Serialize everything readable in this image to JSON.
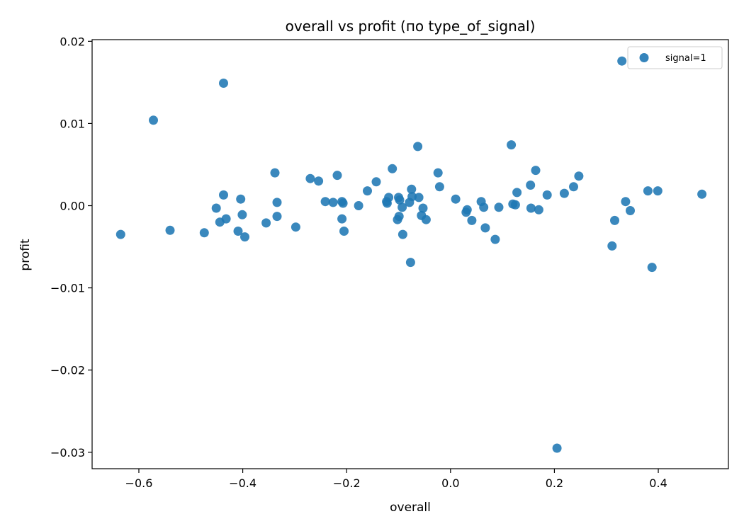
{
  "chart_data": {
    "type": "scatter",
    "title": "overall vs profit (по type_of_signal)",
    "xlabel": "overall",
    "ylabel": "profit",
    "xlim": [
      -0.69,
      0.535
    ],
    "ylim": [
      -0.032,
      0.0202
    ],
    "xticks": [
      -0.6,
      -0.4,
      -0.2,
      0.0,
      0.2,
      0.4
    ],
    "xtick_labels": [
      "−0.6",
      "−0.4",
      "−0.2",
      "0.0",
      "0.2",
      "0.4"
    ],
    "yticks": [
      -0.03,
      -0.02,
      -0.01,
      0.0,
      0.01,
      0.02
    ],
    "ytick_labels": [
      "−0.03",
      "−0.02",
      "−0.01",
      "0.00",
      "0.01",
      "0.02"
    ],
    "grid": false,
    "legend_position": "top-right",
    "series": [
      {
        "name": "signal=1",
        "color": "#1f77b4",
        "points": [
          [
            -0.635,
            -0.0035
          ],
          [
            -0.572,
            0.0104
          ],
          [
            -0.54,
            -0.003
          ],
          [
            -0.474,
            -0.0033
          ],
          [
            -0.451,
            -0.0003
          ],
          [
            -0.444,
            -0.002
          ],
          [
            -0.437,
            0.0149
          ],
          [
            -0.437,
            0.0013
          ],
          [
            -0.432,
            -0.0016
          ],
          [
            -0.409,
            -0.0031
          ],
          [
            -0.404,
            0.0008
          ],
          [
            -0.401,
            -0.0011
          ],
          [
            -0.396,
            -0.0038
          ],
          [
            -0.355,
            -0.0021
          ],
          [
            -0.338,
            0.004
          ],
          [
            -0.334,
            0.0004
          ],
          [
            -0.334,
            -0.0013
          ],
          [
            -0.298,
            -0.0026
          ],
          [
            -0.27,
            0.0033
          ],
          [
            -0.254,
            0.003
          ],
          [
            -0.241,
            0.0005
          ],
          [
            -0.226,
            0.0004
          ],
          [
            -0.218,
            0.0037
          ],
          [
            -0.209,
            0.0005
          ],
          [
            -0.209,
            -0.0016
          ],
          [
            -0.207,
            0.0003
          ],
          [
            -0.205,
            -0.0031
          ],
          [
            -0.177,
            0.0
          ],
          [
            -0.16,
            0.0018
          ],
          [
            -0.143,
            0.0029
          ],
          [
            -0.123,
            0.0005
          ],
          [
            -0.122,
            0.0003
          ],
          [
            -0.119,
            0.001
          ],
          [
            -0.112,
            0.0045
          ],
          [
            -0.102,
            -0.0017
          ],
          [
            -0.1,
            0.001
          ],
          [
            -0.099,
            -0.0013
          ],
          [
            -0.098,
            0.0007
          ],
          [
            -0.093,
            -0.0002
          ],
          [
            -0.092,
            -0.0035
          ],
          [
            -0.079,
            0.0004
          ],
          [
            -0.077,
            -0.0069
          ],
          [
            -0.075,
            0.002
          ],
          [
            -0.074,
            0.0011
          ],
          [
            -0.063,
            0.0072
          ],
          [
            -0.061,
            0.001
          ],
          [
            -0.056,
            -0.0012
          ],
          [
            -0.053,
            -0.0003
          ],
          [
            -0.047,
            -0.0017
          ],
          [
            -0.024,
            0.004
          ],
          [
            -0.021,
            0.0023
          ],
          [
            0.01,
            0.0008
          ],
          [
            0.03,
            -0.0008
          ],
          [
            0.032,
            -0.0005
          ],
          [
            0.041,
            -0.0018
          ],
          [
            0.059,
            0.0005
          ],
          [
            0.064,
            -0.0002
          ],
          [
            0.067,
            -0.0027
          ],
          [
            0.086,
            -0.0041
          ],
          [
            0.093,
            -0.0002
          ],
          [
            0.117,
            0.0074
          ],
          [
            0.12,
            0.0002
          ],
          [
            0.125,
            0.0001
          ],
          [
            0.128,
            0.0016
          ],
          [
            0.154,
            0.0025
          ],
          [
            0.155,
            -0.0003
          ],
          [
            0.164,
            0.0043
          ],
          [
            0.17,
            -0.0005
          ],
          [
            0.186,
            0.0013
          ],
          [
            0.205,
            -0.0295
          ],
          [
            0.219,
            0.0015
          ],
          [
            0.237,
            0.0023
          ],
          [
            0.247,
            0.0036
          ],
          [
            0.311,
            -0.0049
          ],
          [
            0.316,
            -0.0018
          ],
          [
            0.33,
            0.0176
          ],
          [
            0.337,
            0.0005
          ],
          [
            0.346,
            -0.0006
          ],
          [
            0.38,
            0.0018
          ],
          [
            0.388,
            -0.0075
          ],
          [
            0.399,
            0.0018
          ],
          [
            0.484,
            0.0014
          ]
        ]
      }
    ]
  }
}
